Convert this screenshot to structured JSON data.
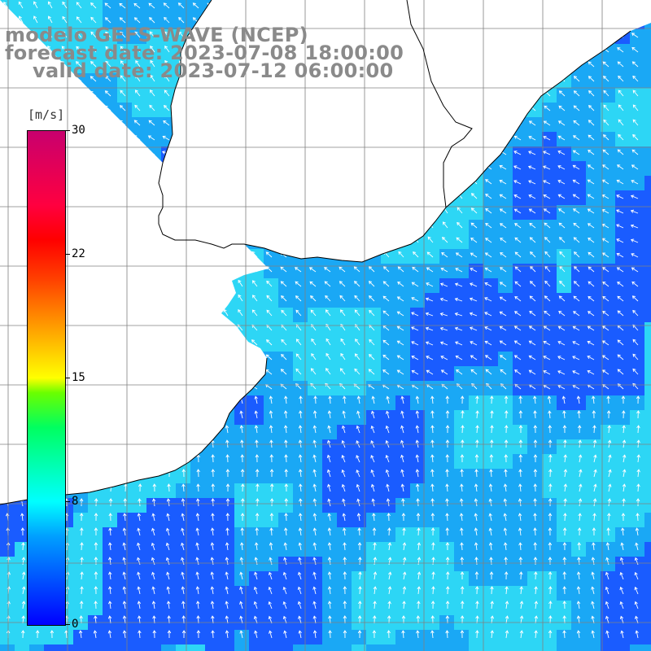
{
  "title": {
    "line1": "modelo GEFS-WAVE (NCEP)",
    "line2": "forecast date: 2023-07-08 18:00:00",
    "line3": "valid date: 2023-07-12 06:00:00"
  },
  "colorbar": {
    "unit": "[m/s]",
    "ticks": [
      "30",
      "22",
      "15",
      "8",
      "0"
    ],
    "min": 0,
    "max": 30
  },
  "colors": {
    "land": "#ffffff",
    "coastline": "#000000",
    "grid": "#808080",
    "arrows": "#ffffff",
    "title": "#8a8a8a",
    "ocean_strong": "#1a5cff",
    "ocean_mid": "#1aa8f5",
    "ocean_light": "#2dd6f5"
  }
}
